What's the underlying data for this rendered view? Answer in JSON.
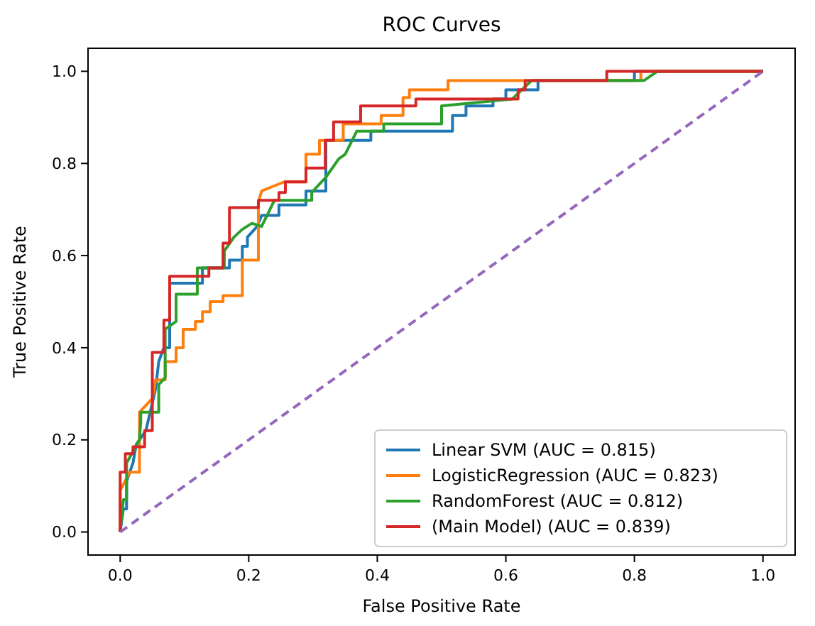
{
  "chart_data": {
    "type": "line",
    "title": "ROC Curves",
    "xlabel": "False Positive Rate",
    "ylabel": "True Positive Rate",
    "xlim": [
      -0.05,
      1.05
    ],
    "ylim": [
      -0.05,
      1.05
    ],
    "xticks": [
      {
        "value": 0,
        "label": "0.0"
      },
      {
        "value": 0.2,
        "label": "0.2"
      },
      {
        "value": 0.4,
        "label": "0.4"
      },
      {
        "value": 0.6,
        "label": "0.6"
      },
      {
        "value": 0.8,
        "label": "0.8"
      },
      {
        "value": 1,
        "label": "1.0"
      }
    ],
    "yticks": [
      {
        "value": 0,
        "label": "0.0"
      },
      {
        "value": 0.2,
        "label": "0.2"
      },
      {
        "value": 0.4,
        "label": "0.4"
      },
      {
        "value": 0.6,
        "label": "0.6"
      },
      {
        "value": 0.8,
        "label": "0.8"
      },
      {
        "value": 1,
        "label": "1.0"
      }
    ],
    "legend": "bottom right",
    "marker": "none",
    "grid": false,
    "series": [
      {
        "name": "Linear SVM (AUC = 0.815)",
        "color": "#1f77b4",
        "line_style": "solid",
        "x": [
          0,
          0.005,
          0.01,
          0.01,
          0.02,
          0.025,
          0.04,
          0.055,
          0.06,
          0.068,
          0.077,
          0.077,
          0.128,
          0.128,
          0.17,
          0.17,
          0.19,
          0.19,
          0.198,
          0.198,
          0.213,
          0.22,
          0.247,
          0.247,
          0.289,
          0.289,
          0.32,
          0.32,
          0.39,
          0.39,
          0.517,
          0.517,
          0.538,
          0.538,
          0.58,
          0.58,
          0.6,
          0.6,
          0.65,
          0.65,
          0.8,
          0.8,
          1
        ],
        "values": [
          0,
          0.05,
          0.05,
          0.11,
          0.15,
          0.19,
          0.22,
          0.31,
          0.37,
          0.4,
          0.4,
          0.54,
          0.54,
          0.573,
          0.573,
          0.59,
          0.59,
          0.62,
          0.62,
          0.64,
          0.663,
          0.687,
          0.687,
          0.71,
          0.71,
          0.74,
          0.74,
          0.85,
          0.85,
          0.87,
          0.87,
          0.904,
          0.904,
          0.925,
          0.925,
          0.94,
          0.94,
          0.96,
          0.96,
          0.98,
          0.98,
          1,
          1
        ]
      },
      {
        "name": "LogisticRegression (AUC = 0.823)",
        "color": "#ff7f0e",
        "line_style": "solid",
        "x": [
          0,
          0,
          0.015,
          0.03,
          0.03,
          0.05,
          0.055,
          0.07,
          0.07,
          0.087,
          0.087,
          0.098,
          0.098,
          0.117,
          0.117,
          0.128,
          0.128,
          0.14,
          0.14,
          0.16,
          0.16,
          0.19,
          0.19,
          0.215,
          0.215,
          0.22,
          0.255,
          0.289,
          0.289,
          0.31,
          0.31,
          0.347,
          0.347,
          0.406,
          0.406,
          0.44,
          0.44,
          0.45,
          0.45,
          0.51,
          0.51,
          0.81,
          0.81,
          1
        ],
        "values": [
          0,
          0.09,
          0.13,
          0.13,
          0.26,
          0.29,
          0.33,
          0.33,
          0.37,
          0.37,
          0.4,
          0.4,
          0.44,
          0.44,
          0.457,
          0.457,
          0.478,
          0.478,
          0.5,
          0.5,
          0.513,
          0.513,
          0.59,
          0.59,
          0.716,
          0.74,
          0.76,
          0.76,
          0.82,
          0.82,
          0.85,
          0.85,
          0.886,
          0.886,
          0.904,
          0.904,
          0.943,
          0.943,
          0.96,
          0.96,
          0.98,
          0.98,
          1,
          1
        ]
      },
      {
        "name": "RandomForest (AUC = 0.812)",
        "color": "#2ca02c",
        "line_style": "solid",
        "x": [
          0,
          0.005,
          0.01,
          0.01,
          0.03,
          0.032,
          0.032,
          0.06,
          0.06,
          0.07,
          0.07,
          0.087,
          0.087,
          0.12,
          0.12,
          0.138,
          0.162,
          0.162,
          0.177,
          0.19,
          0.205,
          0.22,
          0.24,
          0.298,
          0.298,
          0.32,
          0.34,
          0.35,
          0.368,
          0.41,
          0.41,
          0.5,
          0.5,
          0.61,
          0.64,
          0.66,
          0.815,
          0.836,
          1
        ],
        "values": [
          0,
          0.07,
          0.07,
          0.15,
          0.2,
          0.24,
          0.26,
          0.26,
          0.32,
          0.335,
          0.44,
          0.457,
          0.516,
          0.516,
          0.573,
          0.573,
          0.573,
          0.61,
          0.64,
          0.657,
          0.67,
          0.663,
          0.72,
          0.72,
          0.737,
          0.77,
          0.81,
          0.82,
          0.87,
          0.87,
          0.886,
          0.886,
          0.925,
          0.94,
          0.98,
          0.98,
          0.98,
          1,
          1
        ]
      },
      {
        "name": "(Main Model) (AUC = 0.839)",
        "color": "#d62728",
        "line_style": "solid",
        "x": [
          0,
          0,
          0.008,
          0.008,
          0.02,
          0.02,
          0.038,
          0.038,
          0.05,
          0.05,
          0.068,
          0.068,
          0.077,
          0.077,
          0.138,
          0.138,
          0.16,
          0.16,
          0.17,
          0.17,
          0.215,
          0.215,
          0.247,
          0.247,
          0.257,
          0.257,
          0.289,
          0.289,
          0.319,
          0.319,
          0.332,
          0.332,
          0.374,
          0.374,
          0.46,
          0.46,
          0.619,
          0.619,
          0.63,
          0.63,
          0.757,
          0.757,
          1
        ],
        "values": [
          0,
          0.13,
          0.13,
          0.17,
          0.17,
          0.185,
          0.185,
          0.22,
          0.22,
          0.39,
          0.39,
          0.46,
          0.46,
          0.555,
          0.555,
          0.573,
          0.573,
          0.627,
          0.627,
          0.704,
          0.704,
          0.72,
          0.72,
          0.737,
          0.737,
          0.76,
          0.76,
          0.79,
          0.79,
          0.85,
          0.85,
          0.89,
          0.89,
          0.925,
          0.925,
          0.94,
          0.94,
          0.96,
          0.96,
          0.98,
          0.98,
          1,
          1
        ]
      },
      {
        "color": "#9467bd",
        "line_style": "dashed",
        "x": [
          0,
          1
        ],
        "values": [
          0,
          1
        ]
      }
    ]
  }
}
